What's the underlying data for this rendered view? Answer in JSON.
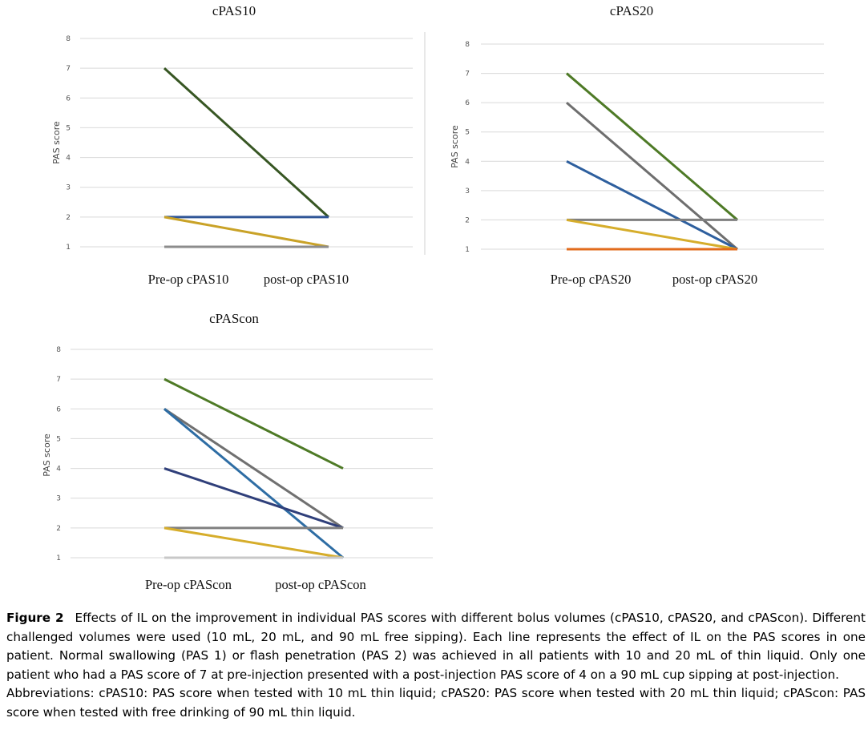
{
  "charts": [
    {
      "type": "line",
      "title": "cPAS10",
      "ylabel": "PAS score",
      "categories": [
        "Pre-op cPAS10",
        "post-op cPAS10"
      ],
      "yticks": [
        "1",
        "2",
        "3",
        "4",
        "5",
        "6",
        "7",
        "8"
      ],
      "ylim": [
        1,
        8
      ],
      "grid": true,
      "series": [
        {
          "color": "#375623",
          "values": [
            7,
            2
          ]
        },
        {
          "color": "#2f5597",
          "values": [
            2,
            2
          ]
        },
        {
          "color": "#c9a227",
          "values": [
            2,
            1
          ]
        },
        {
          "color": "#8c8c8c",
          "values": [
            1,
            1
          ]
        }
      ]
    },
    {
      "type": "line",
      "title": "cPAS20",
      "ylabel": "PAS score",
      "categories": [
        "Pre-op cPAS20",
        "post-op cPAS20"
      ],
      "yticks": [
        "1",
        "2",
        "3",
        "4",
        "5",
        "6",
        "7",
        "8"
      ],
      "ylim": [
        1,
        8
      ],
      "grid": true,
      "series": [
        {
          "color": "#4e7a26",
          "values": [
            7,
            2
          ]
        },
        {
          "color": "#6e6e6e",
          "values": [
            6,
            1
          ]
        },
        {
          "color": "#2e5f9e",
          "values": [
            4,
            1
          ]
        },
        {
          "color": "#7f7f7f",
          "values": [
            2,
            2
          ]
        },
        {
          "color": "#d6ad2b",
          "values": [
            2,
            1
          ]
        },
        {
          "color": "#e26b1c",
          "values": [
            1,
            1
          ]
        }
      ]
    },
    {
      "type": "line",
      "title": "cPAScon",
      "ylabel": "PAS score",
      "categories": [
        "Pre-op cPAScon",
        "post-op cPAScon"
      ],
      "yticks": [
        "1",
        "2",
        "3",
        "4",
        "5",
        "6",
        "7",
        "8"
      ],
      "ylim": [
        1,
        8
      ],
      "grid": true,
      "series": [
        {
          "color": "#4e7a26",
          "values": [
            7,
            4
          ]
        },
        {
          "color": "#707070",
          "values": [
            6,
            2
          ]
        },
        {
          "color": "#2e6da4",
          "values": [
            6,
            1
          ]
        },
        {
          "color": "#2f3f7a",
          "values": [
            4,
            2
          ]
        },
        {
          "color": "#808080",
          "values": [
            2,
            2
          ]
        },
        {
          "color": "#d6ad2b",
          "values": [
            2,
            1
          ]
        },
        {
          "color": "#c8c8c8",
          "values": [
            1,
            1
          ]
        }
      ]
    }
  ],
  "caption": {
    "figure_label": "Figure 2",
    "text": "Effects of IL on the improvement in individual PAS scores with different bolus volumes (cPAS10, cPAS20, and cPAScon). Different challenged volumes were used (10 mL, 20 mL, and 90 mL free sipping). Each line represents the effect of IL on the PAS scores in one patient. Normal swallowing (PAS 1) or flash penetration (PAS 2) was achieved in all patients with 10 and 20 mL of thin liquid. Only one patient who had a PAS score of 7 at pre-injection presented with a post-injection PAS score of 4 on a 90 mL cup sipping at post-injection.",
    "abbreviations": "Abbreviations: cPAS10: PAS score when tested with 10 mL thin liquid; cPAS20: PAS score when tested with 20 mL thin liquid; cPAScon: PAS score when tested with free drinking of 90 mL thin liquid."
  }
}
